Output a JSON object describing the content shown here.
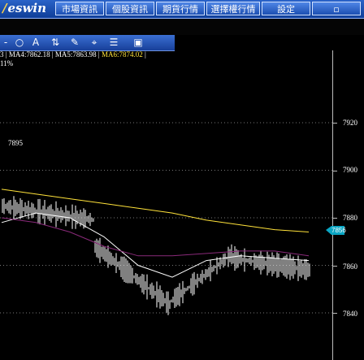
{
  "menu": {
    "logo": "eswin",
    "items": [
      "市場資訊",
      "個股資訊",
      "期貨行情",
      "選擇權行情",
      "設定"
    ]
  },
  "toolbar": {
    "items": [
      "-",
      "○",
      "A",
      "⇅",
      "✎",
      "⌖",
      "☰",
      "▣"
    ]
  },
  "chart": {
    "info_line": {
      "prefix": "3",
      "ma4": "MA4:7862.18",
      "ma5": "MA5:7863.98",
      "ma6": "MA6:7874.02"
    },
    "pct": "11%",
    "high_label": "7895",
    "y_ticks": [
      "7920",
      "7900",
      "7880",
      "7860",
      "7840"
    ],
    "current_price_label": "7856",
    "colors": {
      "ma_white": "#ffffff",
      "ma_yellow": "#ffe23a",
      "ma_purple": "#8a2a7a",
      "accent": "#0aa6c4"
    }
  },
  "chart_data": {
    "type": "line",
    "ylim": [
      7830,
      7935
    ],
    "y_ticks": [
      7920,
      7900,
      7880,
      7860,
      7840
    ],
    "series": [
      {
        "name": "MA4",
        "values": [
          7878,
          7882,
          7880,
          7872,
          7860,
          7855,
          7862,
          7864,
          7863,
          7862
        ]
      },
      {
        "name": "MA5",
        "values": [
          7880,
          7878,
          7874,
          7868,
          7864,
          7864,
          7865,
          7866,
          7866,
          7864
        ]
      },
      {
        "name": "MA6",
        "values": [
          7892,
          7890,
          7888,
          7886,
          7884,
          7882,
          7879,
          7877,
          7875,
          7874
        ]
      }
    ],
    "current_price": 7856
  }
}
